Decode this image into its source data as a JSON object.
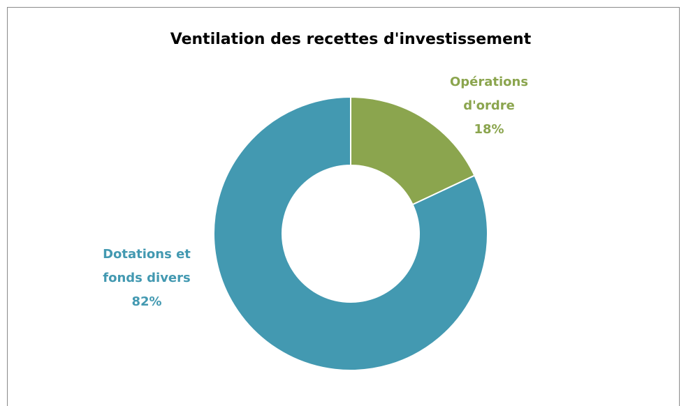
{
  "chart_data": {
    "type": "pie",
    "donut": true,
    "title": "Ventilation des recettes d'investissement",
    "categories": [
      "Opérations d'ordre",
      "Dotations et fonds divers"
    ],
    "values": [
      18,
      82
    ],
    "value_labels": [
      "18%",
      "82%"
    ],
    "colors": [
      "#8ba54e",
      "#4399b1"
    ]
  }
}
